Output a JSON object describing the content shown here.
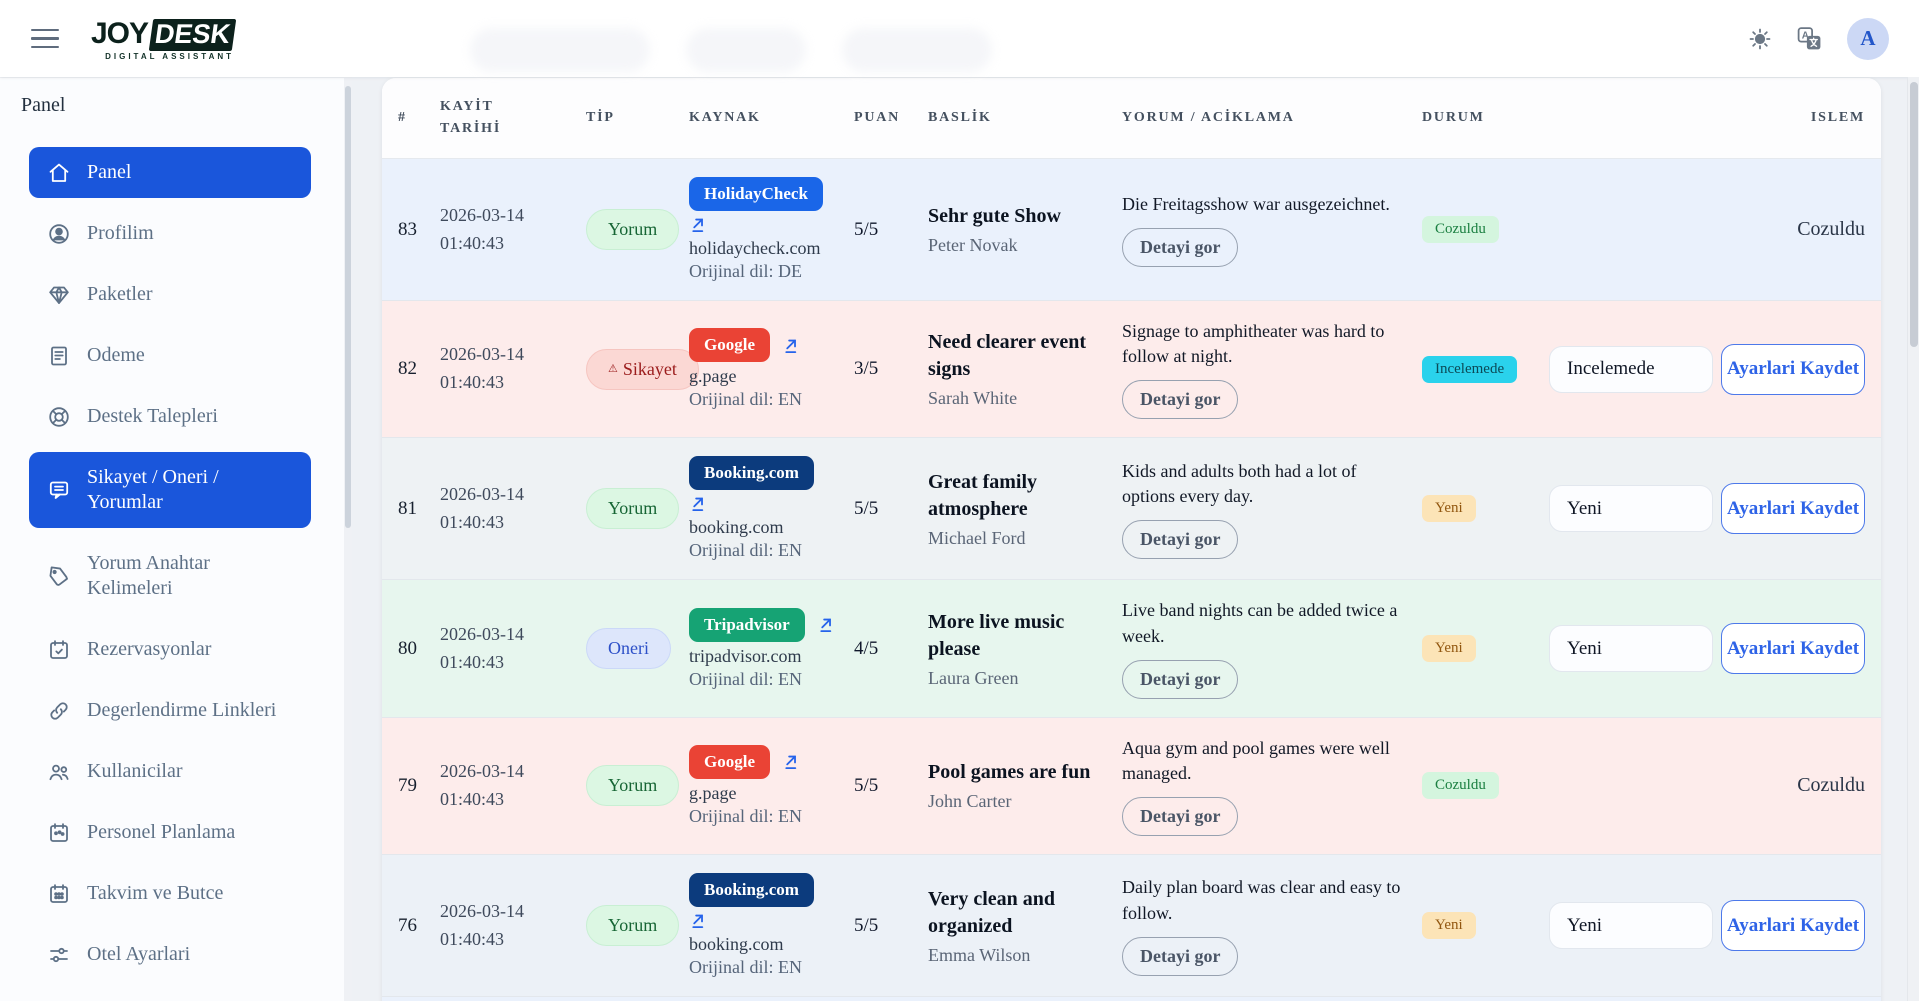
{
  "topbar": {
    "logo": {
      "primary": "JOY",
      "secondary": "DESK",
      "tagline": "DIGITAL ASSISTANT"
    },
    "icons": [
      "menu-icon",
      "theme-toggle-sun-icon",
      "translate-icon"
    ],
    "avatar_initial": "A"
  },
  "sidebar": {
    "section_label": "Panel",
    "items": [
      {
        "key": "panel",
        "label": "Panel",
        "icon": "home-icon",
        "active": true
      },
      {
        "key": "profilim",
        "label": "Profilim",
        "icon": "user-icon",
        "active": false
      },
      {
        "key": "paketler",
        "label": "Paketler",
        "icon": "gem-icon",
        "active": false
      },
      {
        "key": "odeme",
        "label": "Odeme",
        "icon": "receipt-icon",
        "active": false
      },
      {
        "key": "destek-talepleri",
        "label": "Destek Talepleri",
        "icon": "lifebuoy-icon",
        "active": false
      },
      {
        "key": "sikayet-oneri-yorumlar",
        "label": "Sikayet / Oneri / Yorumlar",
        "icon": "chat-icon",
        "active": true
      },
      {
        "key": "yorum-anahtar-kelimeleri",
        "label": "Yorum Anahtar Kelimeleri",
        "icon": "tag-icon",
        "active": false
      },
      {
        "key": "rezervasyonlar",
        "label": "Rezervasyonlar",
        "icon": "calendar-check-icon",
        "active": false
      },
      {
        "key": "degerlendirme-linkleri",
        "label": "Degerlendirme Linkleri",
        "icon": "link-icon",
        "active": false
      },
      {
        "key": "kullanicilar",
        "label": "Kullanicilar",
        "icon": "users-icon",
        "active": false
      },
      {
        "key": "personel-planlama",
        "label": "Personel Planlama",
        "icon": "calendar-event-icon",
        "active": false
      },
      {
        "key": "takvim-ve-butce",
        "label": "Takvim ve Butce",
        "icon": "calendar-grid-icon",
        "active": false
      },
      {
        "key": "otel-ayarlari",
        "label": "Otel Ayarlari",
        "icon": "sliders-icon",
        "active": false
      }
    ]
  },
  "table": {
    "headers": [
      "#",
      "KAYİT TARİHİ",
      "TİP",
      "KAYNAK",
      "PUAN",
      "BASLİK",
      "YORUM / ACİKLAMA",
      "DURUM",
      "ISLEM"
    ],
    "detail_button_label": "Detayi gor",
    "save_button_label": "Ayarlari Kaydet",
    "rows": [
      {
        "id": "83",
        "date": "2026-03-14",
        "time": "01:40:43",
        "type": {
          "label": "Yorum",
          "variant": "yorum",
          "icon": false
        },
        "source": {
          "name": "HolidayCheck",
          "color": "#1a66e8",
          "domain": "holidaycheck.com",
          "lang": "Orijinal dil: DE",
          "arrow": "below"
        },
        "score": "5/5",
        "title": "Sehr gute Show",
        "author": "Peter Novak",
        "comment": "Die Freitagsshow war ausgezeichnet.",
        "status": {
          "label": "Cozuldu",
          "variant": "resolved"
        },
        "action": {
          "type": "text",
          "label": "Cozuldu"
        },
        "tint": "#eaf1fc"
      },
      {
        "id": "82",
        "date": "2026-03-14",
        "time": "01:40:43",
        "type": {
          "label": "Sikayet",
          "variant": "complaint",
          "icon": true
        },
        "source": {
          "name": "Google",
          "color": "#ea4335",
          "domain": "g.page",
          "lang": "Orijinal dil: EN",
          "arrow": "inline"
        },
        "score": "3/5",
        "title": "Need clearer event signs",
        "author": "Sarah White",
        "comment": "Signage to amphitheater was hard to follow at night.",
        "status": {
          "label": "Incelemede",
          "variant": "review"
        },
        "action": {
          "type": "form",
          "select_value": "Incelemede"
        },
        "tint": "#fdeceb"
      },
      {
        "id": "81",
        "date": "2026-03-14",
        "time": "01:40:43",
        "type": {
          "label": "Yorum",
          "variant": "yorum",
          "icon": false
        },
        "source": {
          "name": "Booking.com",
          "color": "#0c3b7d",
          "domain": "booking.com",
          "lang": "Orijinal dil: EN",
          "arrow": "below"
        },
        "score": "5/5",
        "title": "Great family atmosphere",
        "author": "Michael Ford",
        "comment": "Kids and adults both had a lot of options every day.",
        "status": {
          "label": "Yeni",
          "variant": "new"
        },
        "action": {
          "type": "form",
          "select_value": "Yeni"
        },
        "tint": "#eef2f4"
      },
      {
        "id": "80",
        "date": "2026-03-14",
        "time": "01:40:43",
        "type": {
          "label": "Oneri",
          "variant": "suggestion",
          "icon": false
        },
        "source": {
          "name": "Tripadvisor",
          "color": "#16a374",
          "domain": "tripadvisor.com",
          "lang": "Orijinal dil: EN",
          "arrow": "inline"
        },
        "score": "4/5",
        "title": "More live music please",
        "author": "Laura Green",
        "comment": "Live band nights can be added twice a week.",
        "status": {
          "label": "Yeni",
          "variant": "new"
        },
        "action": {
          "type": "form",
          "select_value": "Yeni"
        },
        "tint": "#e7f6ee"
      },
      {
        "id": "79",
        "date": "2026-03-14",
        "time": "01:40:43",
        "type": {
          "label": "Yorum",
          "variant": "yorum",
          "icon": false
        },
        "source": {
          "name": "Google",
          "color": "#ea4335",
          "domain": "g.page",
          "lang": "Orijinal dil: EN",
          "arrow": "inline"
        },
        "score": "5/5",
        "title": "Pool games are fun",
        "author": "John Carter",
        "comment": "Aqua gym and pool games were well managed.",
        "status": {
          "label": "Cozuldu",
          "variant": "resolved"
        },
        "action": {
          "type": "text",
          "label": "Cozuldu"
        },
        "tint": "#fdeceb"
      },
      {
        "id": "76",
        "date": "2026-03-14",
        "time": "01:40:43",
        "type": {
          "label": "Yorum",
          "variant": "yorum",
          "icon": false
        },
        "source": {
          "name": "Booking.com",
          "color": "#0c3b7d",
          "domain": "booking.com",
          "lang": "Orijinal dil: EN",
          "arrow": "below"
        },
        "score": "5/5",
        "title": "Very clean and organized",
        "author": "Emma Wilson",
        "comment": "Daily plan board was clear and easy to follow.",
        "status": {
          "label": "Yeni",
          "variant": "new"
        },
        "action": {
          "type": "form",
          "select_value": "Yeni"
        },
        "tint": "#ecf1f7"
      }
    ],
    "partial_row": {
      "tint": "#eaf1fc",
      "source_color": "#1a66e8"
    }
  }
}
